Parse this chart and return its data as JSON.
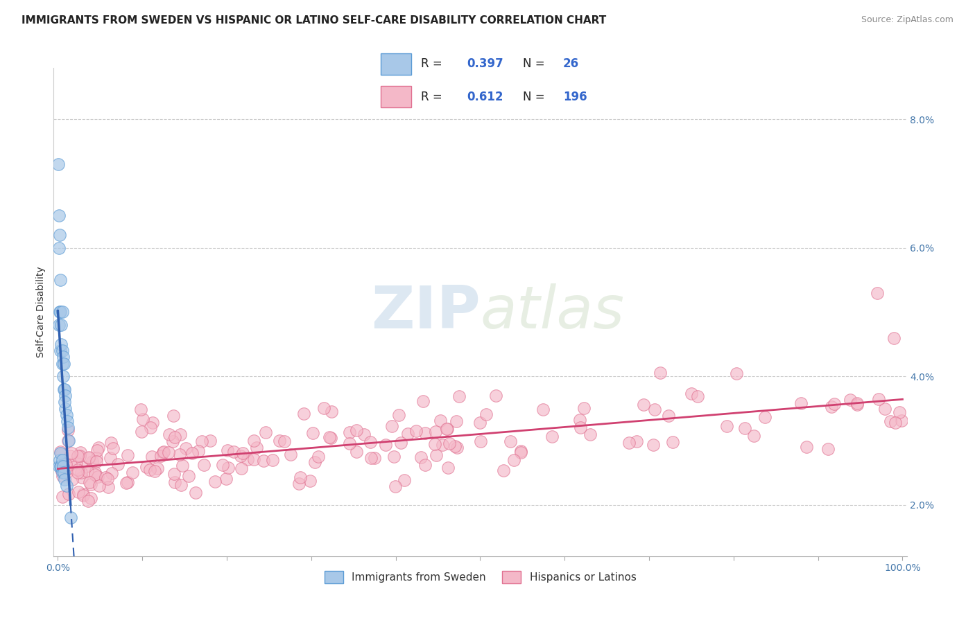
{
  "title": "IMMIGRANTS FROM SWEDEN VS HISPANIC OR LATINO SELF-CARE DISABILITY CORRELATION CHART",
  "source": "Source: ZipAtlas.com",
  "ylabel": "Self-Care Disability",
  "xlim": [
    -0.005,
    1.005
  ],
  "ylim": [
    0.012,
    0.088
  ],
  "yticks": [
    0.02,
    0.04,
    0.06,
    0.08
  ],
  "ytick_labels": [
    "2.0%",
    "4.0%",
    "6.0%",
    "8.0%"
  ],
  "xtick_positions": [
    0.0,
    0.1,
    0.2,
    0.3,
    0.4,
    0.5,
    0.6,
    0.7,
    0.8,
    0.9,
    1.0
  ],
  "blue_R": 0.397,
  "blue_N": 26,
  "pink_R": 0.612,
  "pink_N": 196,
  "blue_fill": "#a8c8e8",
  "blue_edge": "#5b9bd5",
  "pink_fill": "#f4b8c8",
  "pink_edge": "#e07090",
  "blue_line": "#3060b0",
  "pink_line": "#d04070",
  "legend_label_blue": "Immigrants from Sweden",
  "legend_label_pink": "Hispanics or Latinos",
  "title_fontsize": 11,
  "source_fontsize": 9,
  "axis_fontsize": 10,
  "legend_fontsize": 11
}
